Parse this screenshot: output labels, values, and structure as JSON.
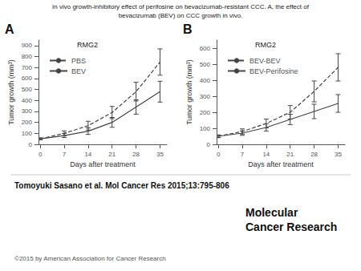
{
  "title": [
    "In vivo growth-inhibitory effect of perifosine on bevacizumab-resistant CCC. A, the effect of",
    "bevacizumab (BEV) on CCC growth in vivo."
  ],
  "annotations": [
    "Tomoyuki Sasano et al. Mol Cancer Res 2015;13:795-806",
    "©2015 by American Association for Cancer Research",
    "Molecular",
    "Cancer Research"
  ],
  "chart_data": [
    {
      "type": "line",
      "title": "A",
      "subtitle": "RMG2",
      "xlabel": "Days after treatment",
      "ylabel": "Tumor growth (mm³)",
      "x": [
        0,
        7,
        14,
        21,
        28,
        35
      ],
      "xlim": [
        -0.5,
        37
      ],
      "xticks": [
        0,
        7,
        14,
        21,
        28,
        35
      ],
      "ylim": [
        0,
        950
      ],
      "yticks": [
        0,
        100,
        200,
        300,
        400,
        500,
        600,
        700,
        800,
        900
      ],
      "grid": false,
      "legend": "upper left",
      "series": [
        {
          "name": "PBS",
          "color": "#444444",
          "line_style": "dashed",
          "values": [
            50,
            100,
            170,
            290,
            480,
            750
          ],
          "errors": [
            8,
            22,
            40,
            55,
            85,
            120
          ]
        },
        {
          "name": "BEV",
          "color": "#444444",
          "line_style": "solid",
          "values": [
            50,
            80,
            120,
            200,
            340,
            480
          ],
          "errors": [
            8,
            18,
            30,
            45,
            65,
            95
          ]
        }
      ]
    },
    {
      "type": "line",
      "title": "B",
      "subtitle": "RMG2",
      "xlabel": "Days after treatment",
      "ylabel": "Tumor growth (mm³)",
      "x": [
        0,
        7,
        14,
        21,
        28,
        35
      ],
      "xlim": [
        -0.5,
        37
      ],
      "xticks": [
        0,
        7,
        14,
        21,
        28,
        35
      ],
      "ylim": [
        0,
        650
      ],
      "yticks": [
        0,
        100,
        200,
        300,
        400,
        500,
        600
      ],
      "grid": false,
      "legend": "upper left",
      "series": [
        {
          "name": "BEV-BEV",
          "color": "#444444",
          "line_style": "dashed",
          "values": [
            50,
            80,
            130,
            200,
            330,
            480
          ],
          "errors": [
            8,
            16,
            28,
            42,
            65,
            85
          ]
        },
        {
          "name": "BEV-Perifosine",
          "color": "#444444",
          "line_style": "solid",
          "values": [
            50,
            70,
            105,
            155,
            205,
            255
          ],
          "errors": [
            8,
            14,
            22,
            32,
            45,
            55
          ]
        }
      ]
    }
  ]
}
